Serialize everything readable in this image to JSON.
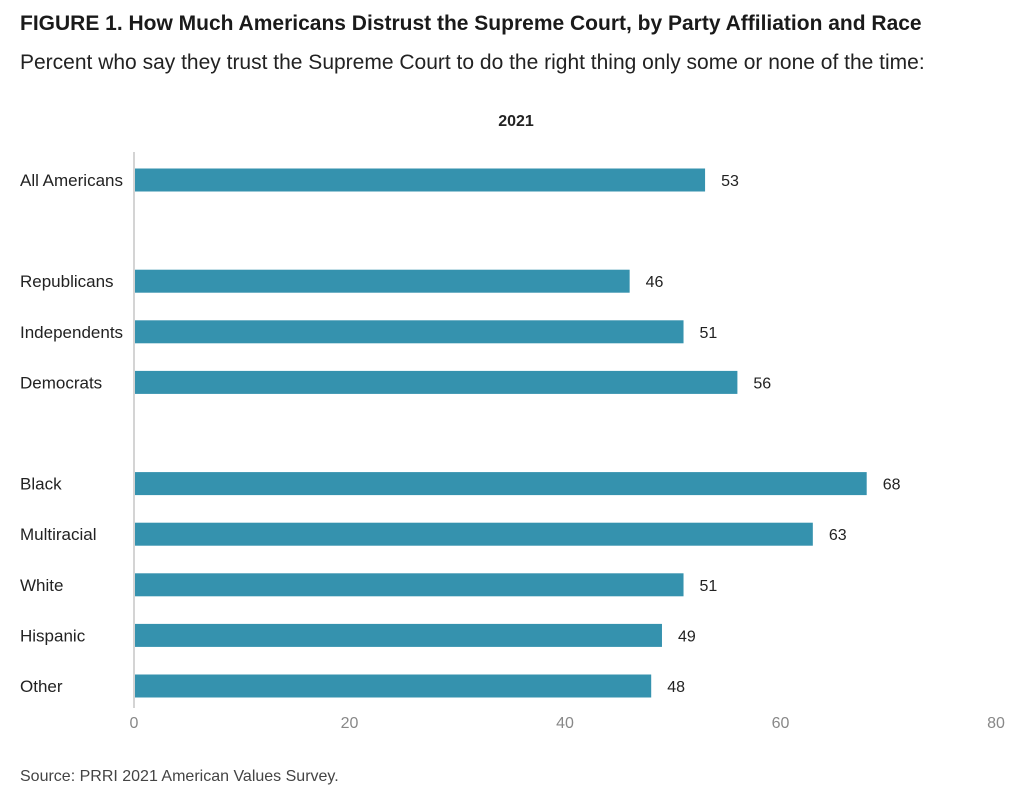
{
  "figure": {
    "title": "FIGURE 1.  How Much Americans Distrust the Supreme Court, by Party Affiliation and Race",
    "subtitle": "Percent who say they trust the Supreme Court to do the right thing only some or none of the time:",
    "source": "Source: PRRI 2021 American Values Survey."
  },
  "chart_data": {
    "type": "bar",
    "orientation": "horizontal",
    "panel_title": "2021",
    "categories": [
      "All Americans",
      "Republicans",
      "Independents",
      "Democrats",
      "Black",
      "Multiracial",
      "White",
      "Hispanic",
      "Other"
    ],
    "groups": [
      [
        0
      ],
      [
        1,
        2,
        3
      ],
      [
        4,
        5,
        6,
        7,
        8
      ]
    ],
    "values": [
      53,
      46,
      51,
      56,
      68,
      63,
      51,
      49,
      48
    ],
    "xlim": [
      0,
      80
    ],
    "xticks": [
      0,
      20,
      40,
      60,
      80
    ],
    "bar_color": "#3592ae",
    "axis_color": "#d4d4d4",
    "grid": false,
    "xlabel": "",
    "ylabel": ""
  }
}
